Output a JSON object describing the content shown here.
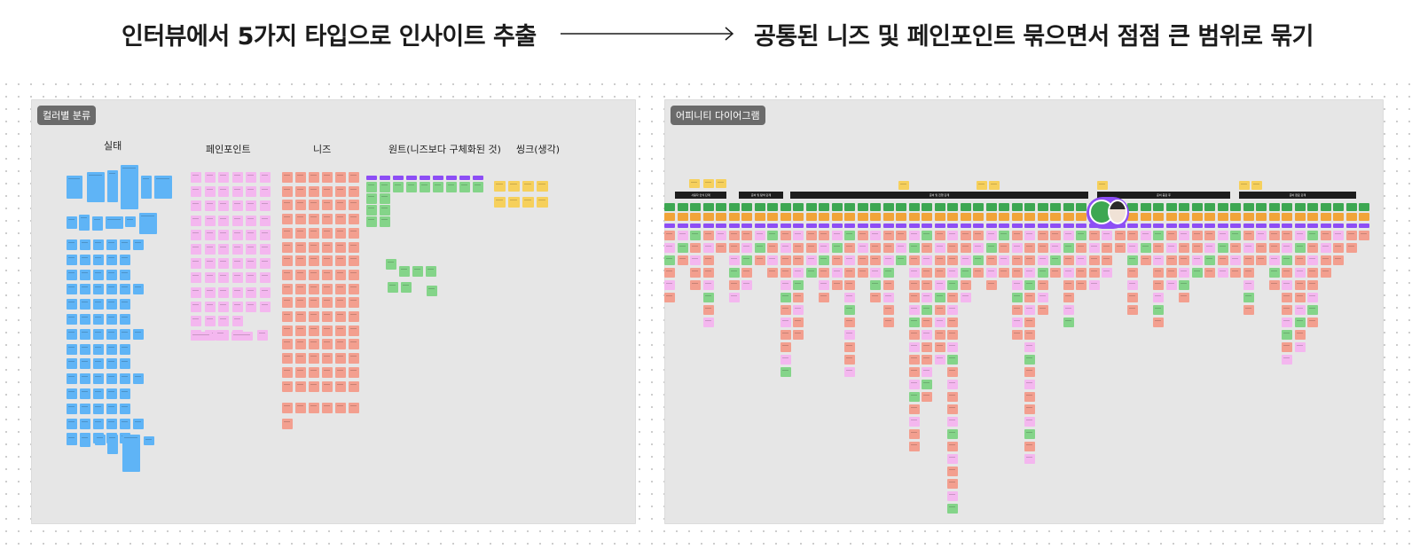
{
  "headline": {
    "left": "인터뷰에서 5가지 타입으로 인사이트 추출",
    "right": "공통된 니즈 및 페인포인트 묶으면서 점점 큰 범위로 묶기",
    "arrow_icon": "long-right-arrow"
  },
  "left_frame": {
    "tag": "컬러별 분류",
    "columns": [
      {
        "label": "실태",
        "color": "#5fb4f6"
      },
      {
        "label": "페인포인트",
        "color": "#f4b7ef"
      },
      {
        "label": "니즈",
        "color": "#f39f8f"
      },
      {
        "label": "원트(니즈보다 구체화된 것)",
        "color": "#84d489"
      },
      {
        "label": "씽크(생각)",
        "color": "#f6d05c"
      }
    ]
  },
  "right_frame": {
    "tag": "어피니티 다이어그램",
    "group_headers": [
      "사용자 인식 단계",
      "준비 및 탐색 단계",
      "준비 및 진행 단계",
      "준비 중료 후",
      "준비 완료 단계"
    ],
    "colors": {
      "header": "#1d1d1d",
      "theme": "#3da752",
      "subtheme": "#f1a439",
      "label": "#8d4ef5"
    }
  },
  "collaborator": {
    "icon": "user-avatar-cursor"
  }
}
